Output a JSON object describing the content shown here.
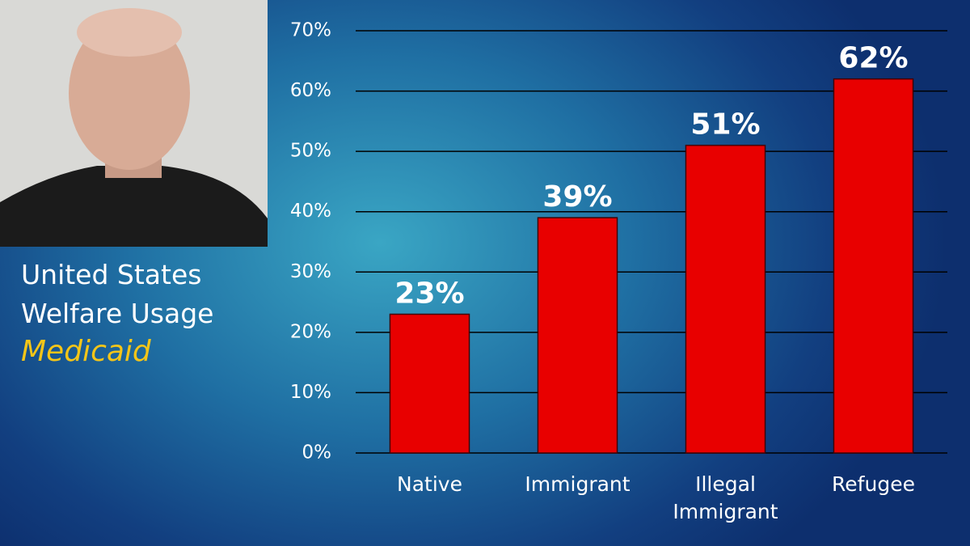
{
  "chart_data": {
    "type": "bar",
    "title": "United States Welfare Usage",
    "subtitle": "Medicaid",
    "categories": [
      "Native",
      "Immigrant",
      "Illegal Immigrant",
      "Refugee"
    ],
    "values": [
      23,
      39,
      51,
      62
    ],
    "value_labels": [
      "23%",
      "39%",
      "51%",
      "62%"
    ],
    "color": "#e80000",
    "ylim": [
      0,
      70
    ],
    "yticks": [
      {
        "value": 0,
        "label": "0%"
      },
      {
        "value": 10,
        "label": "10%"
      },
      {
        "value": 20,
        "label": "20%"
      },
      {
        "value": 30,
        "label": "30%"
      },
      {
        "value": 40,
        "label": "40%"
      },
      {
        "value": 50,
        "label": "50%"
      },
      {
        "value": 60,
        "label": "60%"
      },
      {
        "value": 70,
        "label": "70%"
      }
    ],
    "grid": true
  }
}
